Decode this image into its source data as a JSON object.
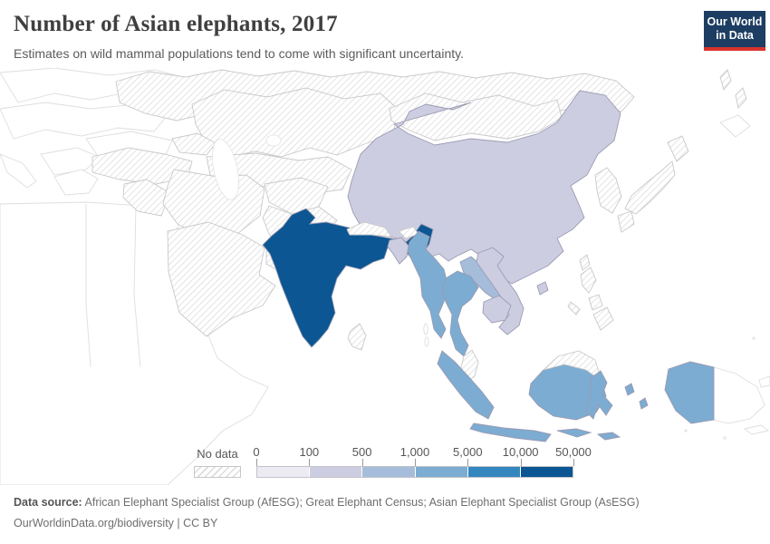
{
  "header": {
    "title": "Number of Asian elephants, 2017",
    "subtitle": "Estimates on wild mammal populations tend to come with significant uncertainty.",
    "logo": {
      "line1": "Our World",
      "line2": "in Data",
      "bg_color": "#1d3d63",
      "accent_color": "#d9332e"
    }
  },
  "footer": {
    "source_label": "Data source:",
    "source_text": "African Elephant Specialist Group (AfESG); Great Elephant Census; Asian Elephant Specialist Group (AsESG)",
    "citation": "OurWorldinData.org/biodiversity | CC BY"
  },
  "chart_data": {
    "type": "choropleth_map",
    "title": "Number of Asian elephants, 2017",
    "year": "2017",
    "region_shown": "Asia",
    "legend": {
      "no_data_label": "No data",
      "ticks": [
        "0",
        "100",
        "500",
        "1,000",
        "5,000",
        "10,000",
        "50,000"
      ],
      "bins": [
        {
          "range": "0–100",
          "color": "#ECEAF3"
        },
        {
          "range": "100–500",
          "color": "#CDCDE2"
        },
        {
          "range": "500–1,000",
          "color": "#A5BDDB"
        },
        {
          "range": "1,000–5,000",
          "color": "#7CACD1"
        },
        {
          "range": "5,000–10,000",
          "color": "#3487BE"
        },
        {
          "range": "10,000–50,000",
          "color": "#0B5693"
        }
      ],
      "stroke_colored": "#9b9bb2",
      "stroke_nodata": "#c9c9c9"
    },
    "countries": {
      "india": {
        "name": "India",
        "bin_index": 5,
        "range": "10,000–50,000"
      },
      "myanmar": {
        "name": "Myanmar",
        "bin_index": 3,
        "range": "1,000–5,000"
      },
      "thailand": {
        "name": "Thailand",
        "bin_index": 3,
        "range": "1,000–5,000"
      },
      "indonesia": {
        "name": "Indonesia",
        "bin_index": 3,
        "range": "1,000–5,000"
      },
      "laos": {
        "name": "Laos",
        "bin_index": 2,
        "range": "500–1,000"
      },
      "china": {
        "name": "China",
        "bin_index": 1,
        "range": "100–500"
      },
      "vietnam": {
        "name": "Vietnam",
        "bin_index": 1,
        "range": "100–500"
      },
      "cambodia": {
        "name": "Cambodia",
        "bin_index": 1,
        "range": "100–500"
      },
      "bangladesh": {
        "name": "Bangladesh",
        "bin_index": 1,
        "range": "100–500"
      },
      "nepal": {
        "name": "Nepal",
        "bin_index": -1,
        "range": "No data"
      },
      "bhutan": {
        "name": "Bhutan",
        "bin_index": -1,
        "range": "No data"
      },
      "sri-lanka": {
        "name": "Sri Lanka",
        "bin_index": -1,
        "range": "No data"
      },
      "malaysia": {
        "name": "Malaysia",
        "bin_index": -1,
        "range": "No data"
      },
      "mongolia": {
        "name": "Mongolia",
        "bin_index": -1,
        "range": "No data"
      },
      "russia": {
        "name": "Russia",
        "bin_index": -1,
        "range": "No data"
      },
      "kazakhstan": {
        "name": "Kazakhstan",
        "bin_index": -1,
        "range": "No data"
      },
      "central-asia": {
        "name": "Central Asia",
        "bin_index": -1,
        "range": "No data"
      },
      "caucasus": {
        "name": "Caucasus",
        "bin_index": -1,
        "range": "No data"
      },
      "turkey": {
        "name": "Turkey",
        "bin_index": -1,
        "range": "No data"
      },
      "syria-iraq": {
        "name": "Syria/Iraq",
        "bin_index": -1,
        "range": "No data"
      },
      "iran": {
        "name": "Iran",
        "bin_index": -1,
        "range": "No data"
      },
      "saudi-arabia": {
        "name": "Saudi Arabia",
        "bin_index": -1,
        "range": "No data"
      },
      "gulf-states": {
        "name": "Gulf states",
        "bin_index": -1,
        "range": "No data"
      },
      "afghanistan": {
        "name": "Afghanistan",
        "bin_index": -1,
        "range": "No data"
      },
      "pakistan": {
        "name": "Pakistan",
        "bin_index": -1,
        "range": "No data"
      },
      "korea": {
        "name": "Korea",
        "bin_index": -1,
        "range": "No data"
      },
      "japan": {
        "name": "Japan",
        "bin_index": -1,
        "range": "No data"
      },
      "philippines": {
        "name": "Philippines",
        "bin_index": -1,
        "range": "No data"
      },
      "taiwan": {
        "name": "Taiwan",
        "bin_index": -1,
        "range": "No data"
      }
    }
  }
}
